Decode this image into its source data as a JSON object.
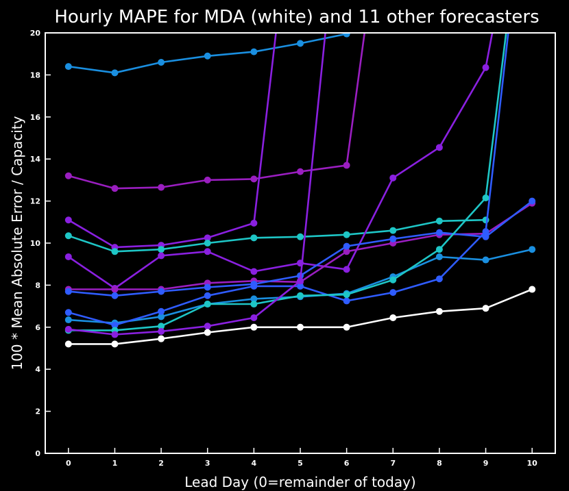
{
  "chart_data": {
    "type": "line",
    "title": "Hourly MAPE for MDA (white) and 11 other forecasters",
    "xlabel": "Lead Day (0=remainder of today)",
    "ylabel": "100 * Mean Absolute Error / Capacity",
    "xlim": [
      -0.5,
      10.5
    ],
    "ylim": [
      0,
      20
    ],
    "x_ticks": [
      0,
      1,
      2,
      3,
      4,
      5,
      6,
      7,
      8,
      9,
      10
    ],
    "y_ticks": [
      0,
      2,
      4,
      6,
      8,
      10,
      12,
      14,
      16,
      18,
      20
    ],
    "grid": false,
    "legend": "none",
    "colors": {
      "background": "#000000",
      "foreground": "#ffffff",
      "mda": "#ffffff",
      "sky_blue": "#1a8fe0",
      "royal_blue": "#2f5cff",
      "cyan": "#1ec6c6",
      "purple": "#8a20e0",
      "violet": "#9a1ec0"
    },
    "series": [
      {
        "color": "#ffffff",
        "x": [
          0,
          1,
          2,
          3,
          4,
          5,
          6,
          7,
          8,
          9,
          10
        ],
        "values": [
          5.2,
          5.2,
          5.45,
          5.75,
          6.0,
          6.0,
          6.0,
          6.45,
          6.75,
          6.9,
          7.8
        ]
      },
      {
        "color": "#1a8fe0",
        "x": [
          0,
          1,
          2,
          3,
          4,
          5,
          6
        ],
        "values": [
          18.4,
          18.1,
          18.6,
          18.9,
          19.1,
          19.5,
          19.95
        ]
      },
      {
        "color": "#9a1ec0",
        "x": [
          0,
          1,
          2,
          3,
          4,
          5,
          6,
          7
        ],
        "values": [
          13.2,
          12.6,
          12.65,
          13.0,
          13.05,
          13.4,
          13.7,
          30
        ]
      },
      {
        "color": "#8a20e0",
        "x": [
          0,
          1,
          2,
          3,
          4,
          5
        ],
        "values": [
          11.1,
          9.8,
          9.9,
          10.25,
          10.95,
          30
        ]
      },
      {
        "color": "#1ec6c6",
        "x": [
          0,
          1,
          2,
          3,
          4,
          5,
          6,
          7,
          8,
          9
        ],
        "values": [
          10.35,
          9.6,
          9.7,
          10.0,
          10.25,
          10.3,
          10.4,
          10.6,
          11.05,
          11.1
        ]
      },
      {
        "color": "#8a20e0",
        "x": [
          0,
          1,
          2,
          3,
          4,
          5,
          6,
          7,
          8,
          9,
          10
        ],
        "values": [
          9.35,
          7.85,
          9.4,
          9.6,
          8.65,
          9.05,
          8.75,
          13.1,
          14.55,
          18.35,
          30
        ]
      },
      {
        "color": "#9a1ec0",
        "x": [
          0,
          1,
          2,
          3,
          4,
          5,
          6,
          7,
          8,
          9,
          10
        ],
        "values": [
          7.8,
          7.8,
          7.8,
          8.1,
          8.2,
          8.15,
          9.6,
          10.0,
          10.4,
          10.45,
          11.9
        ]
      },
      {
        "color": "#2f5cff",
        "x": [
          0,
          1,
          2,
          3,
          4,
          5,
          6,
          7,
          8,
          9,
          10
        ],
        "values": [
          7.7,
          7.5,
          7.7,
          7.9,
          8.05,
          8.45,
          9.85,
          10.2,
          10.5,
          10.3,
          12.0
        ]
      },
      {
        "color": "#1a8fe0",
        "x": [
          0,
          1,
          2,
          3,
          4,
          5,
          6,
          7,
          8,
          9,
          10
        ],
        "values": [
          6.35,
          6.2,
          6.5,
          7.1,
          7.35,
          7.45,
          7.6,
          8.4,
          9.35,
          9.2,
          9.7
        ]
      },
      {
        "color": "#2f5cff",
        "x": [
          0,
          1,
          2,
          3,
          4,
          5,
          6,
          7,
          8,
          9,
          10
        ],
        "values": [
          6.7,
          6.1,
          6.75,
          7.5,
          7.95,
          7.95,
          7.25,
          7.65,
          8.3,
          10.55,
          30
        ]
      },
      {
        "color": "#1ec6c6",
        "x": [
          0,
          1,
          2,
          3,
          4,
          5,
          6,
          7,
          8,
          9,
          10
        ],
        "values": [
          5.85,
          5.85,
          6.05,
          7.1,
          7.1,
          7.5,
          7.55,
          8.25,
          9.7,
          12.15,
          30
        ]
      },
      {
        "color": "#8a20e0",
        "x": [
          0,
          1,
          2,
          3,
          4,
          5,
          6
        ],
        "values": [
          5.9,
          5.65,
          5.8,
          6.05,
          6.45,
          8.2,
          30
        ]
      }
    ]
  }
}
